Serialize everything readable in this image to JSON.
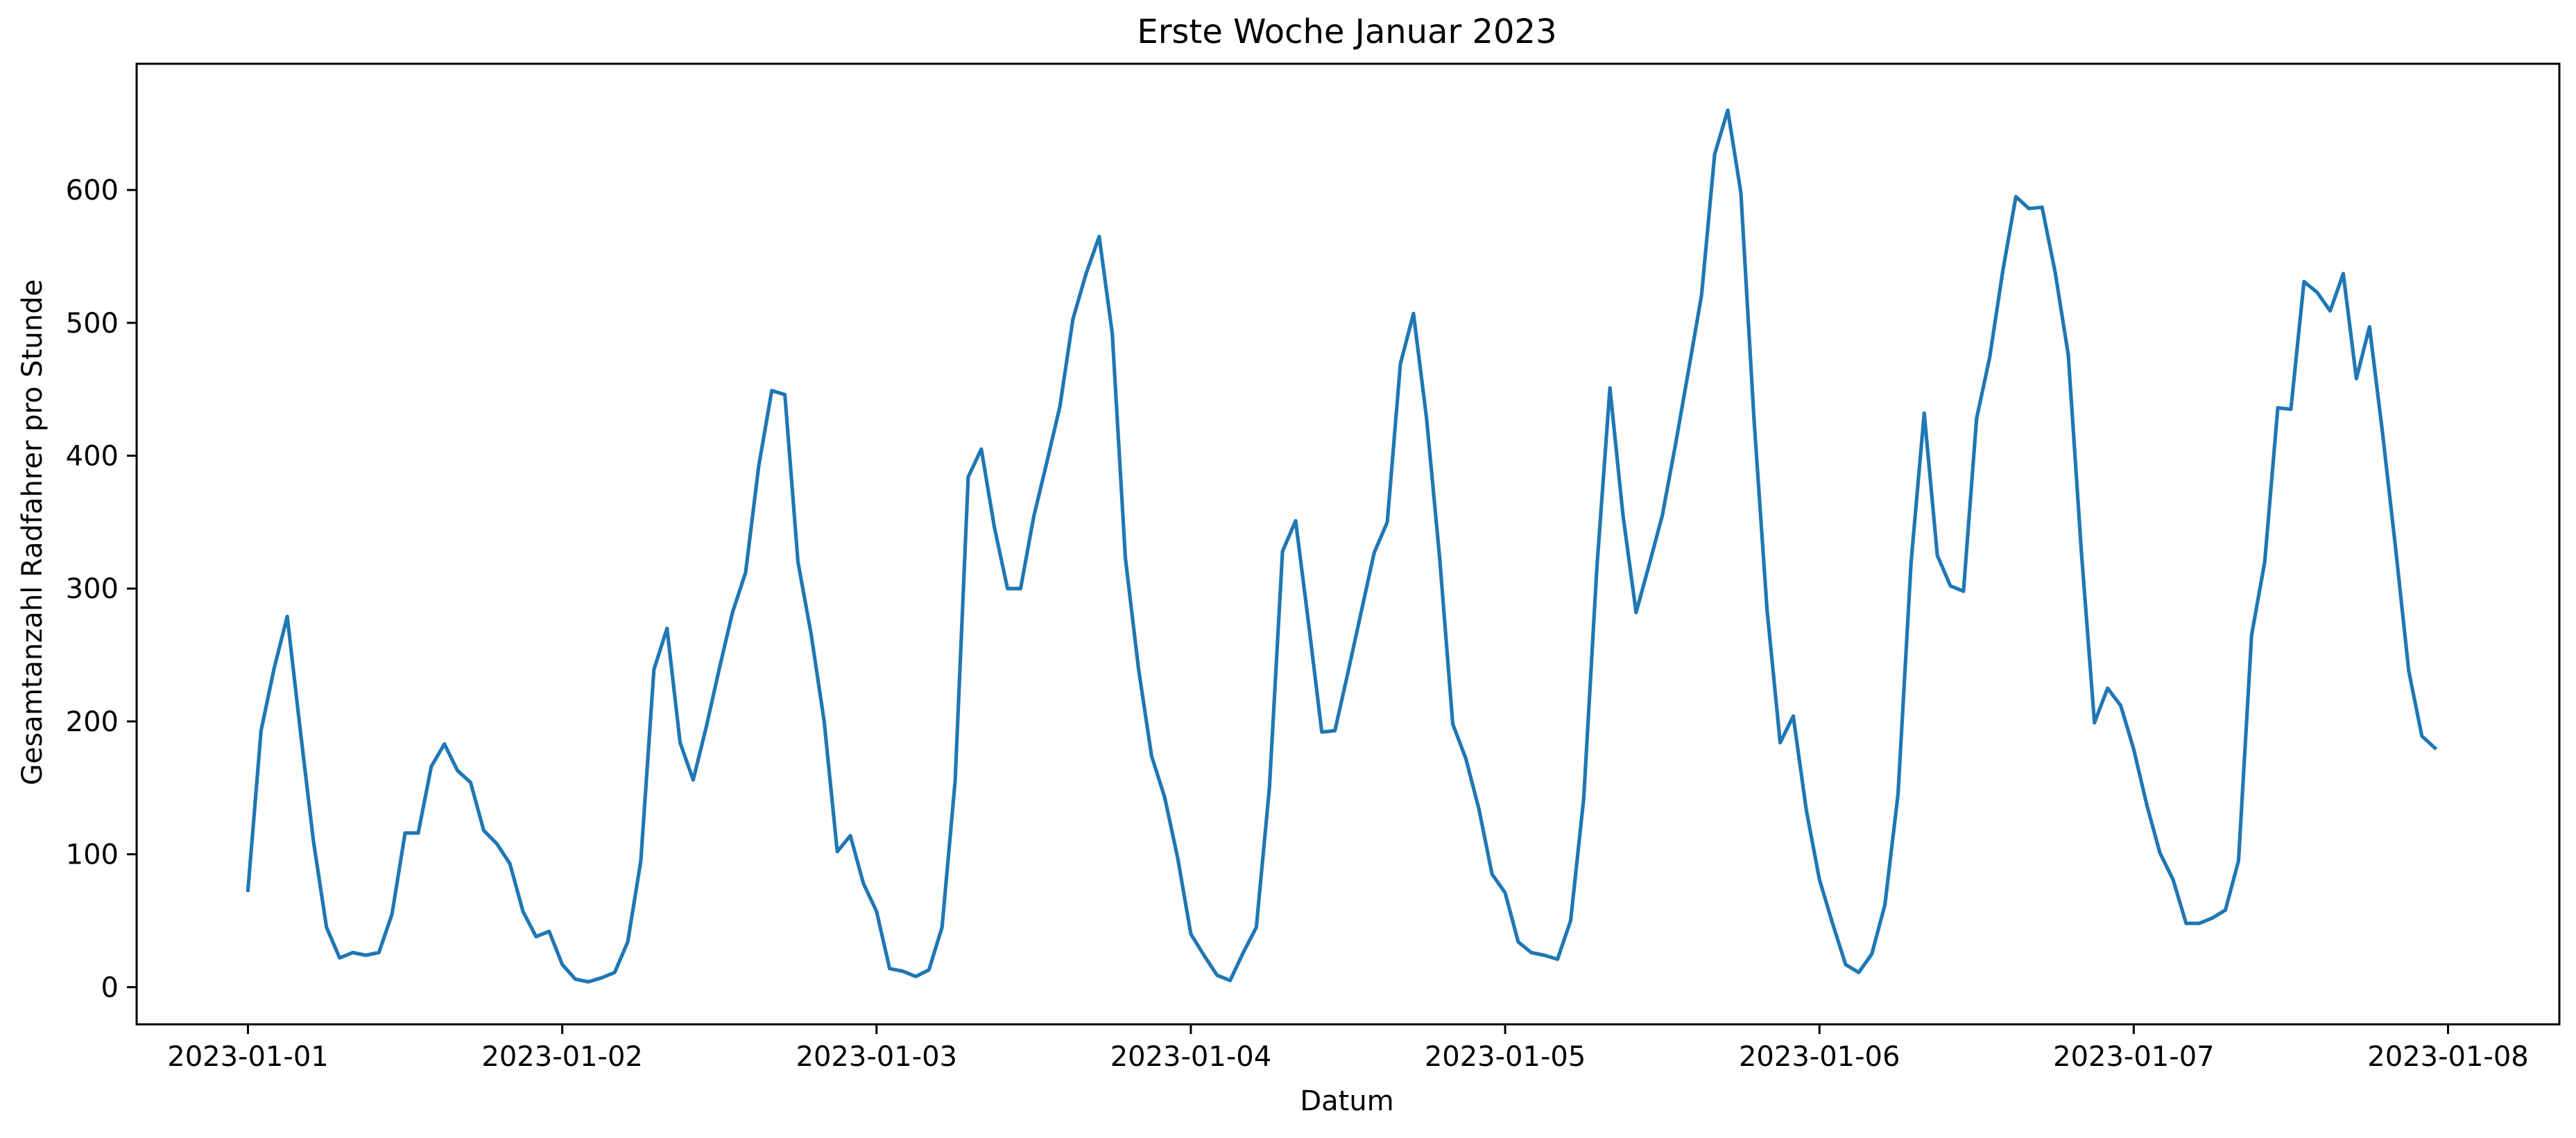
{
  "chart_data": {
    "type": "line",
    "title": "Erste Woche Januar 2023",
    "xlabel": "Datum",
    "ylabel": "Gesamtanzahl Radfahrer pro Stunde",
    "x_start": "2023-01-01 00:00",
    "x_interval": "1 hour",
    "xlim": [
      "2022-12-31 15:30",
      "2023-01-08 08:30"
    ],
    "ylim": [
      -28,
      695
    ],
    "x_ticks": [
      "2023-01-01",
      "2023-01-02",
      "2023-01-03",
      "2023-01-04",
      "2023-01-05",
      "2023-01-06",
      "2023-01-07",
      "2023-01-08"
    ],
    "y_ticks": [
      0,
      100,
      200,
      300,
      400,
      500,
      600
    ],
    "grid": false,
    "legend": "none",
    "color": "#1f77b4",
    "series": [
      {
        "values": [
          73,
          193,
          240,
          279,
          193,
          110,
          45,
          22,
          26,
          24,
          26,
          55,
          116,
          116,
          166,
          183,
          163,
          154,
          118,
          108,
          93,
          57,
          38,
          42,
          17,
          6,
          4,
          7,
          11,
          34,
          95,
          239,
          270,
          184,
          156,
          196,
          240,
          282,
          312,
          392,
          449,
          446,
          320,
          266,
          200,
          102,
          114,
          78,
          57,
          14,
          12,
          8,
          13,
          45,
          155,
          384,
          405,
          346,
          300,
          300,
          354,
          395,
          437,
          503,
          537,
          565,
          492,
          323,
          240,
          174,
          143,
          97,
          40,
          24,
          9,
          5,
          26,
          45,
          150,
          328,
          351,
          273,
          192,
          193,
          237,
          282,
          327,
          350,
          469,
          507,
          428,
          323,
          198,
          172,
          134,
          85,
          71,
          34,
          26,
          24,
          21,
          50,
          142,
          315,
          451,
          355,
          282,
          318,
          355,
          408,
          464,
          521,
          627,
          660,
          598,
          428,
          284,
          184,
          204,
          133,
          81,
          48,
          17,
          11,
          25,
          62,
          145,
          320,
          432,
          325,
          302,
          298,
          428,
          474,
          539,
          595,
          586,
          587,
          538,
          476,
          328,
          199,
          225,
          212,
          179,
          137,
          101,
          81,
          48,
          48,
          52,
          58,
          95,
          265,
          320,
          436,
          435,
          531,
          523,
          509,
          537,
          458,
          497,
          417,
          330,
          238,
          189,
          180
        ]
      }
    ]
  }
}
